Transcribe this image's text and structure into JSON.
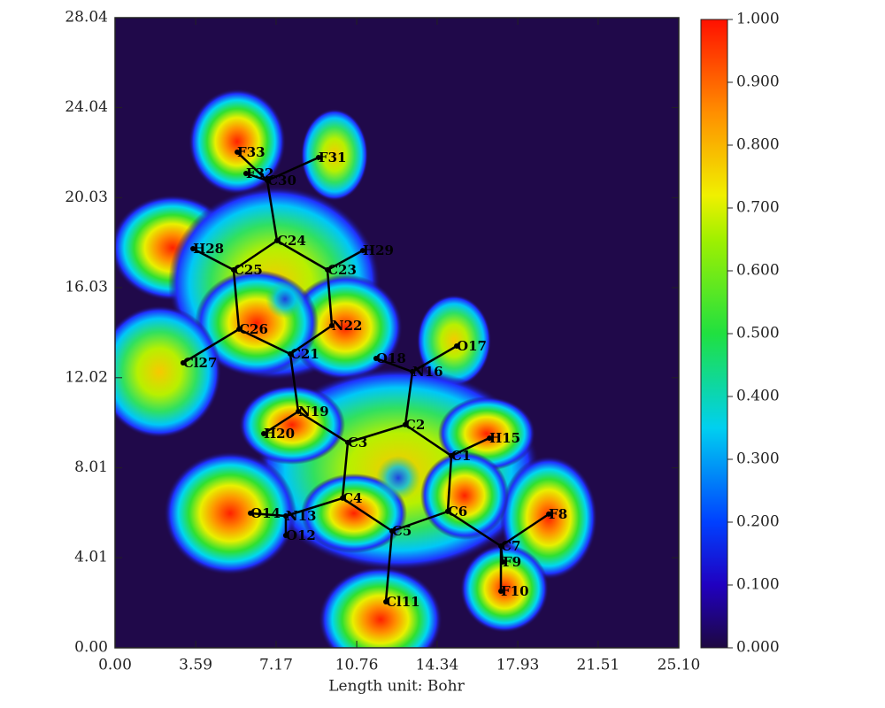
{
  "chart_data": {
    "type": "scatter",
    "xlabel": "Length unit: Bohr",
    "xlim": [
      0,
      25.1
    ],
    "ylim": [
      0,
      28.04
    ],
    "xticks": [
      {
        "value": 0,
        "label": "0.00"
      },
      {
        "value": 3.59,
        "label": "3.59"
      },
      {
        "value": 7.17,
        "label": "7.17"
      },
      {
        "value": 10.76,
        "label": "10.76"
      },
      {
        "value": 14.34,
        "label": "14.34"
      },
      {
        "value": 17.93,
        "label": "17.93"
      },
      {
        "value": 21.51,
        "label": "21.51"
      },
      {
        "value": 25.1,
        "label": "25.10"
      }
    ],
    "yticks": [
      {
        "value": 0,
        "label": "0.00"
      },
      {
        "value": 4.01,
        "label": "4.01"
      },
      {
        "value": 8.01,
        "label": "8.01"
      },
      {
        "value": 12.02,
        "label": "12.02"
      },
      {
        "value": 16.03,
        "label": "16.03"
      },
      {
        "value": 20.03,
        "label": "20.03"
      },
      {
        "value": 24.04,
        "label": "24.04"
      },
      {
        "value": 28.04,
        "label": "28.04"
      }
    ],
    "clim": [
      0,
      1
    ],
    "cticks": [
      {
        "value": 0,
        "label": "0.000"
      },
      {
        "value": 0.1,
        "label": "0.100"
      },
      {
        "value": 0.2,
        "label": "0.200"
      },
      {
        "value": 0.3,
        "label": "0.300"
      },
      {
        "value": 0.4,
        "label": "0.400"
      },
      {
        "value": 0.5,
        "label": "0.500"
      },
      {
        "value": 0.6,
        "label": "0.600"
      },
      {
        "value": 0.7,
        "label": "0.700"
      },
      {
        "value": 0.8,
        "label": "0.800"
      },
      {
        "value": 0.9,
        "label": "0.900"
      },
      {
        "value": 1,
        "label": "1.000"
      }
    ],
    "points": [
      {
        "label": "F33",
        "x": 5.44,
        "y": 22.06
      },
      {
        "label": "F31",
        "x": 9.06,
        "y": 21.82
      },
      {
        "label": "F32",
        "x": 5.83,
        "y": 21.11
      },
      {
        "label": "C30",
        "x": 6.78,
        "y": 20.8
      },
      {
        "label": "C24",
        "x": 7.21,
        "y": 18.12
      },
      {
        "label": "C23",
        "x": 9.46,
        "y": 16.82
      },
      {
        "label": "H29",
        "x": 11.03,
        "y": 17.68
      },
      {
        "label": "C25",
        "x": 5.28,
        "y": 16.82
      },
      {
        "label": "H28",
        "x": 3.47,
        "y": 17.76
      },
      {
        "label": "C26",
        "x": 5.52,
        "y": 14.18
      },
      {
        "label": "Cl27",
        "x": 3.03,
        "y": 12.68
      },
      {
        "label": "C21",
        "x": 7.8,
        "y": 13.08
      },
      {
        "label": "N22",
        "x": 9.65,
        "y": 14.34
      },
      {
        "label": "N19",
        "x": 8.16,
        "y": 10.52
      },
      {
        "label": "H20",
        "x": 6.62,
        "y": 9.53
      },
      {
        "label": "C3",
        "x": 10.36,
        "y": 9.14
      },
      {
        "label": "C2",
        "x": 12.92,
        "y": 9.93
      },
      {
        "label": "N16",
        "x": 13.24,
        "y": 12.29
      },
      {
        "label": "O18",
        "x": 11.62,
        "y": 12.88
      },
      {
        "label": "O17",
        "x": 15.21,
        "y": 13.43
      },
      {
        "label": "C1",
        "x": 14.97,
        "y": 8.55
      },
      {
        "label": "H15",
        "x": 16.67,
        "y": 9.33
      },
      {
        "label": "C6",
        "x": 14.81,
        "y": 6.07
      },
      {
        "label": "C5",
        "x": 12.33,
        "y": 5.2
      },
      {
        "label": "C4",
        "x": 10.13,
        "y": 6.66
      },
      {
        "label": "N13",
        "x": 7.6,
        "y": 5.87
      },
      {
        "label": "O14",
        "x": 6.03,
        "y": 5.99
      },
      {
        "label": "O12",
        "x": 7.6,
        "y": 5.0
      },
      {
        "label": "C7",
        "x": 17.18,
        "y": 4.53
      },
      {
        "label": "F8",
        "x": 19.31,
        "y": 5.95
      },
      {
        "label": "F9",
        "x": 17.26,
        "y": 3.82
      },
      {
        "label": "F10",
        "x": 17.18,
        "y": 2.52
      },
      {
        "label": "Cl11",
        "x": 12.06,
        "y": 2.05
      }
    ]
  }
}
